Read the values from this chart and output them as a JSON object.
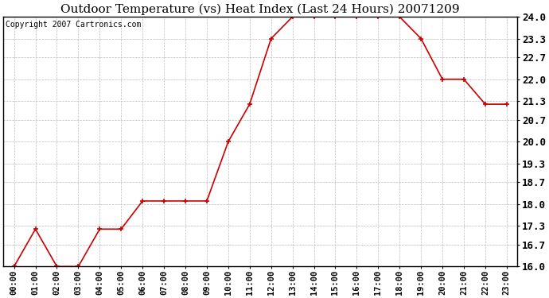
{
  "title": "Outdoor Temperature (vs) Heat Index (Last 24 Hours) 20071209",
  "copyright": "Copyright 2007 Cartronics.com",
  "x_labels": [
    "00:00",
    "01:00",
    "02:00",
    "03:00",
    "04:00",
    "05:00",
    "06:00",
    "07:00",
    "08:00",
    "09:00",
    "10:00",
    "11:00",
    "12:00",
    "13:00",
    "14:00",
    "15:00",
    "16:00",
    "17:00",
    "18:00",
    "19:00",
    "20:00",
    "21:00",
    "22:00",
    "23:00"
  ],
  "y_values": [
    16.0,
    17.2,
    16.0,
    16.0,
    17.2,
    17.2,
    18.1,
    18.1,
    18.1,
    18.1,
    20.0,
    21.2,
    23.3,
    24.0,
    24.0,
    24.0,
    24.0,
    24.0,
    24.0,
    23.3,
    22.0,
    22.0,
    21.2,
    21.2
  ],
  "ylim_min": 16.0,
  "ylim_max": 24.0,
  "ytick_values": [
    16.0,
    16.7,
    17.3,
    18.0,
    18.7,
    19.3,
    20.0,
    20.7,
    21.3,
    22.0,
    22.7,
    23.3,
    24.0
  ],
  "ytick_labels": [
    "16.0",
    "16.7",
    "17.3",
    "18.0",
    "18.7",
    "19.3",
    "20.0",
    "20.7",
    "21.3",
    "22.0",
    "22.7",
    "23.3",
    "24.0"
  ],
  "line_color": "#cc0000",
  "marker": "+",
  "bg_color": "#ffffff",
  "grid_color": "#bbbbbb",
  "title_fontsize": 11,
  "copyright_fontsize": 7,
  "tick_fontsize": 7.5,
  "ytick_fontsize": 9
}
